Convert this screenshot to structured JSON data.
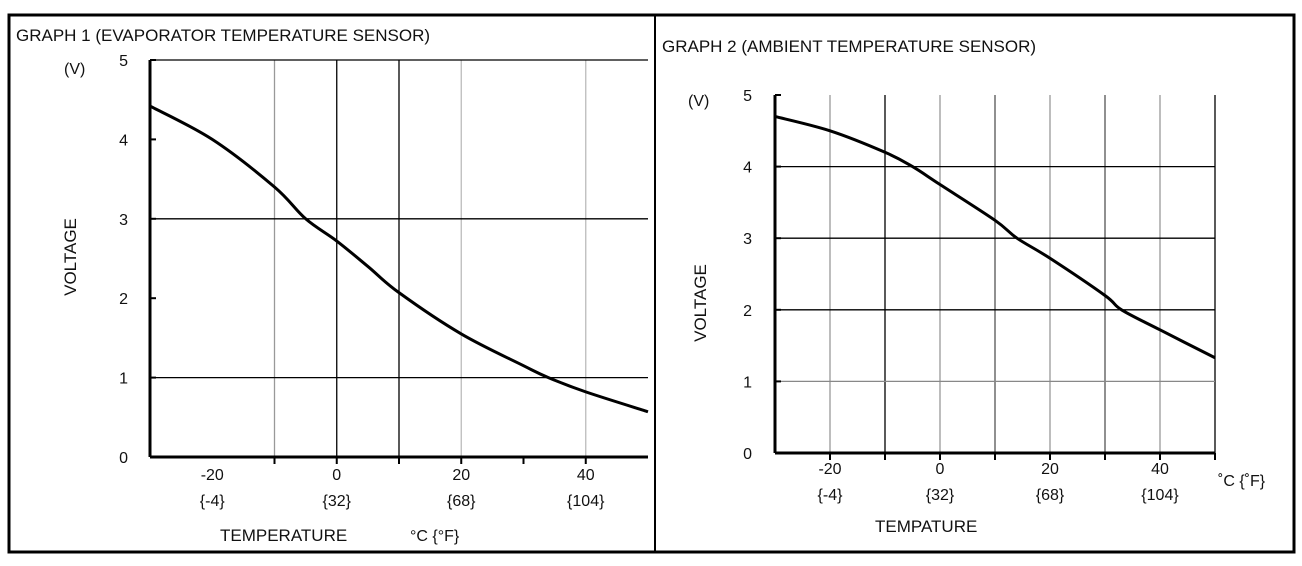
{
  "chart_data": [
    {
      "type": "line",
      "title": "GRAPH 1 (EVAPORATOR TEMPERATURE SENSOR)",
      "xlabel": "TEMPERATURE",
      "xunit": "°C {°F}",
      "ylabel": "VOLTAGE",
      "yunit": "(V)",
      "xlim": [
        -30,
        50
      ],
      "ylim": [
        0,
        5
      ],
      "yticks": [
        "0",
        "1",
        "2",
        "3",
        "4",
        "5"
      ],
      "xticks": [
        {
          "value": -20,
          "c": "-20",
          "f": "{-4}"
        },
        {
          "value": 0,
          "c": "0",
          "f": "{32}"
        },
        {
          "value": 20,
          "c": "20",
          "f": "{68}"
        },
        {
          "value": 40,
          "c": "40",
          "f": "{104}"
        }
      ],
      "grid": true,
      "series": [
        {
          "name": "Evaporator temperature sensor",
          "x": [
            -30,
            -20,
            -10,
            -5,
            0,
            5,
            10,
            20,
            30,
            34,
            40,
            50
          ],
          "y": [
            4.42,
            4.0,
            3.4,
            3.0,
            2.72,
            2.4,
            2.07,
            1.55,
            1.15,
            1.0,
            0.82,
            0.57
          ]
        }
      ]
    },
    {
      "type": "line",
      "title": "GRAPH 2 (AMBIENT TEMPERATURE SENSOR)",
      "xlabel": "TEMPATURE",
      "xunit": "˚C {˚F}",
      "ylabel": "VOLTAGE",
      "yunit": "(V)",
      "xlim": [
        -30,
        50
      ],
      "ylim": [
        0,
        5
      ],
      "yticks": [
        "0",
        "1",
        "2",
        "3",
        "4",
        "5"
      ],
      "xticks": [
        {
          "value": -20,
          "c": "-20",
          "f": "{-4}"
        },
        {
          "value": 0,
          "c": "0",
          "f": "{32}"
        },
        {
          "value": 20,
          "c": "20",
          "f": "{68}"
        },
        {
          "value": 40,
          "c": "40",
          "f": "{104}"
        }
      ],
      "grid": true,
      "series": [
        {
          "name": "Ambient temperature sensor",
          "x": [
            -30,
            -20,
            -10,
            -5,
            0,
            10,
            14,
            20,
            30,
            33,
            40,
            50
          ],
          "y": [
            4.7,
            4.5,
            4.2,
            4.0,
            3.75,
            3.25,
            3.0,
            2.72,
            2.2,
            2.0,
            1.72,
            1.33
          ]
        }
      ]
    }
  ]
}
